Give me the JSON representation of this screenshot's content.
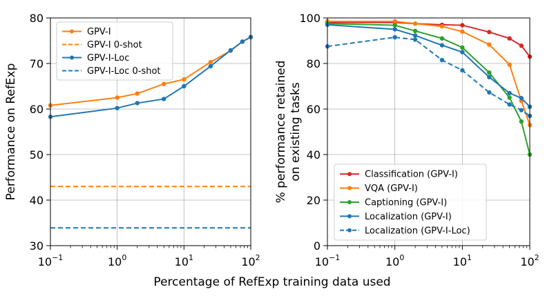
{
  "figure": {
    "xlabel": "Percentage of RefExp training data used"
  },
  "chart_data": [
    {
      "type": "line",
      "title": "",
      "xscale": "log",
      "xlim": [
        0.1,
        100
      ],
      "ylim": [
        30,
        80
      ],
      "ylabel": "Performance on RefExp",
      "xticks": [
        {
          "base": "10",
          "exp": "−1"
        },
        {
          "base": "10",
          "exp": "0"
        },
        {
          "base": "10",
          "exp": "1"
        },
        {
          "base": "10",
          "exp": "2"
        }
      ],
      "yticks": [
        "30",
        "40",
        "50",
        "60",
        "70",
        "80"
      ],
      "legend_position": "top-left",
      "series": [
        {
          "name": "GPV-I",
          "color": "#ff7f0e",
          "style": "solid",
          "markers": true,
          "x": [
            0.1,
            1,
            2,
            5,
            10,
            25,
            50,
            75,
            100
          ],
          "y": [
            60.8,
            62.5,
            63.4,
            65.5,
            66.5,
            70.3,
            72.8,
            74.8,
            75.8
          ]
        },
        {
          "name": "GPV-I 0-shot",
          "color": "#ff7f0e",
          "style": "dashed",
          "markers": false,
          "x": [
            0.1,
            100
          ],
          "y": [
            43.0,
            43.0
          ]
        },
        {
          "name": "GPV-I-Loc",
          "color": "#1f77b4",
          "style": "solid",
          "markers": true,
          "x": [
            0.1,
            1,
            2,
            5,
            10,
            25,
            50,
            75,
            100
          ],
          "y": [
            58.3,
            60.2,
            61.3,
            62.2,
            65.0,
            69.4,
            72.9,
            74.8,
            75.8
          ]
        },
        {
          "name": "GPV-I-Loc 0-shot",
          "color": "#1f77b4",
          "style": "dashed",
          "markers": false,
          "x": [
            0.1,
            100
          ],
          "y": [
            33.9,
            33.9
          ]
        }
      ]
    },
    {
      "type": "line",
      "title": "",
      "xscale": "log",
      "xlim": [
        0.1,
        100
      ],
      "ylim": [
        0,
        100
      ],
      "ylabel": "% performance retained",
      "ylabel2": "on existing tasks",
      "xticks": [
        {
          "base": "10",
          "exp": "−1"
        },
        {
          "base": "10",
          "exp": "0"
        },
        {
          "base": "10",
          "exp": "1"
        },
        {
          "base": "10",
          "exp": "2"
        }
      ],
      "yticks": [
        "0",
        "20",
        "40",
        "60",
        "80",
        "100"
      ],
      "legend_position": "bottom-left",
      "series": [
        {
          "name": "Classification (GPV-I)",
          "color": "#d62728",
          "style": "solid",
          "markers": true,
          "x": [
            0.1,
            1,
            2,
            5,
            10,
            25,
            50,
            75,
            100
          ],
          "y": [
            98.0,
            98.0,
            97.5,
            97.0,
            96.8,
            93.8,
            91.0,
            87.8,
            83.0
          ]
        },
        {
          "name": "VQA (GPV-I)",
          "color": "#ff7f0e",
          "style": "solid",
          "markers": true,
          "x": [
            0.1,
            1,
            2,
            5,
            10,
            25,
            50,
            75,
            100
          ],
          "y": [
            98.5,
            98.5,
            97.5,
            96.3,
            94.0,
            88.3,
            79.5,
            63.5,
            53.0
          ]
        },
        {
          "name": "Captioning (GPV-I)",
          "color": "#2ca02c",
          "style": "solid",
          "markers": true,
          "x": [
            0.1,
            1,
            2,
            5,
            10,
            25,
            50,
            75,
            100
          ],
          "y": [
            97.5,
            96.8,
            94.3,
            91.0,
            87.0,
            76.0,
            65.0,
            54.5,
            40.0
          ]
        },
        {
          "name": "Localization (GPV-I)",
          "color": "#1f77b4",
          "style": "solid",
          "markers": true,
          "x": [
            0.1,
            1,
            2,
            5,
            10,
            25,
            50,
            75,
            100
          ],
          "y": [
            97.0,
            95.0,
            92.3,
            88.0,
            85.0,
            74.0,
            67.0,
            64.8,
            61.0
          ]
        },
        {
          "name": "Localization (GPV-I-Loc)",
          "color": "#1f77b4",
          "style": "dashed",
          "markers": true,
          "x": [
            0.1,
            1,
            2,
            5,
            10,
            25,
            50,
            75,
            100
          ],
          "y": [
            87.5,
            91.5,
            90.5,
            81.5,
            77.0,
            67.3,
            62.0,
            59.5,
            57.0
          ]
        }
      ]
    }
  ]
}
